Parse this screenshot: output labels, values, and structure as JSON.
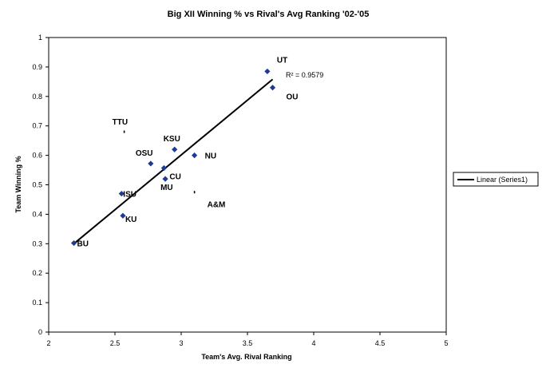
{
  "chart_data": {
    "type": "scatter",
    "title": "Big XII Winning % vs Rival's Avg Ranking '02-'05",
    "xlabel": "Team's Avg. Rival Ranking",
    "ylabel": "Team Winning %",
    "xlim": [
      2,
      5
    ],
    "ylim": [
      0,
      1
    ],
    "x_ticks": [
      "2",
      "2.5",
      "3",
      "3.5",
      "4",
      "4.5",
      "5"
    ],
    "y_ticks": [
      "0",
      "0.1",
      "0.2",
      "0.3",
      "0.4",
      "0.5",
      "0.6",
      "0.7",
      "0.8",
      "0.9",
      "1"
    ],
    "points": [
      {
        "label": "UT",
        "x": 3.65,
        "y": 0.885
      },
      {
        "label": "OU",
        "x": 3.69,
        "y": 0.83
      },
      {
        "label": "TTU",
        "x": 2.57,
        "y": 0.68
      },
      {
        "label": "KSU",
        "x": 2.95,
        "y": 0.62
      },
      {
        "label": "NU",
        "x": 3.1,
        "y": 0.6
      },
      {
        "label": "OSU",
        "x": 2.77,
        "y": 0.572
      },
      {
        "label": "CU",
        "x": 2.87,
        "y": 0.557
      },
      {
        "label": "MU",
        "x": 2.88,
        "y": 0.52
      },
      {
        "label": "A&M",
        "x": 3.1,
        "y": 0.475
      },
      {
        "label": "ISU",
        "x": 2.55,
        "y": 0.47
      },
      {
        "label": "KU",
        "x": 2.56,
        "y": 0.395
      },
      {
        "label": "BU",
        "x": 2.19,
        "y": 0.302
      }
    ],
    "trendline": {
      "x": [
        2.19,
        3.69
      ],
      "y": [
        0.3,
        0.858
      ]
    },
    "r_squared_label": "R² = 0.9579",
    "legend": {
      "label": "Linear (Series1)",
      "placement": "right"
    },
    "grid": false,
    "colors": {
      "marker": "#1f3a93",
      "line": "#000000"
    }
  }
}
